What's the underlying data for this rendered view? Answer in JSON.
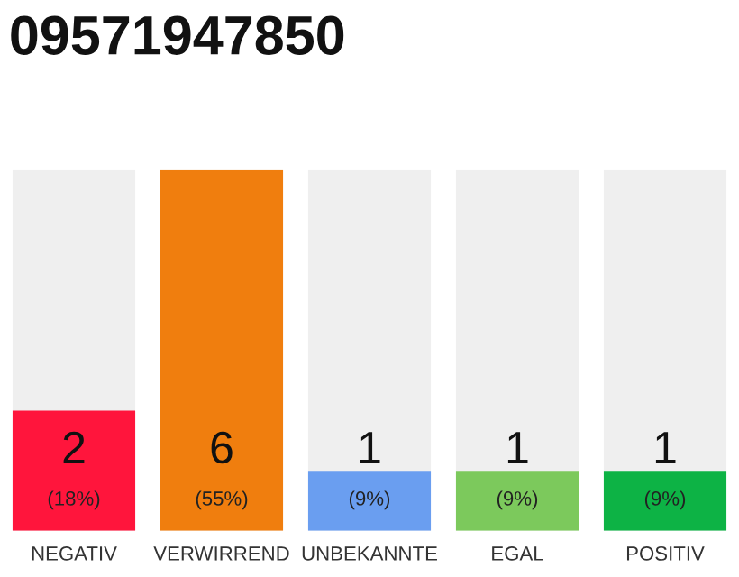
{
  "chart_data": {
    "type": "bar",
    "title": "09571947850",
    "categories": [
      "NEGATIV",
      "VERWIRREND",
      "UNBEKANNTE",
      "EGAL",
      "POSITIV"
    ],
    "values": [
      2,
      6,
      1,
      1,
      1
    ],
    "colors": [
      "#ff153c",
      "#f07e0e",
      "#6a9ef0",
      "#7cc95c",
      "#0db345"
    ],
    "value_labels": [
      "2\n(18%)",
      "6\n(55%)",
      "1\n(9%)",
      "1\n(9%)",
      "1\n(9%)"
    ],
    "grid": false,
    "legend": false
  }
}
